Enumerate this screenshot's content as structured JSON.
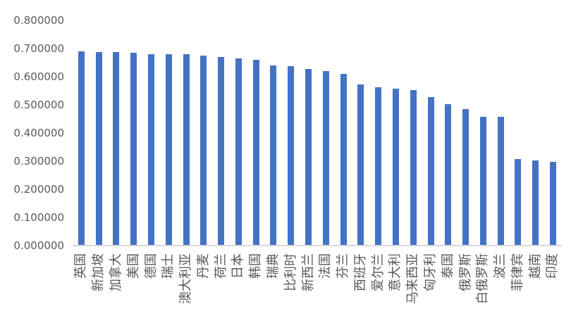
{
  "chart_data": {
    "type": "bar",
    "title": "",
    "xlabel": "",
    "ylabel": "",
    "categories": [
      "英国",
      "新加坡",
      "加拿大",
      "美国",
      "德国",
      "瑞士",
      "澳大利亚",
      "丹麦",
      "荷兰",
      "日本",
      "韩国",
      "瑞典",
      "比利时",
      "新西兰",
      "法国",
      "芬兰",
      "西班牙",
      "爱尔兰",
      "意大利",
      "马来西亚",
      "匈牙利",
      "泰国",
      "俄罗斯",
      "白俄罗斯",
      "波兰",
      "菲律宾",
      "越南",
      "印度"
    ],
    "values": [
      0.691,
      0.688,
      0.688,
      0.684,
      0.681,
      0.68,
      0.679,
      0.675,
      0.671,
      0.666,
      0.661,
      0.64,
      0.637,
      0.628,
      0.621,
      0.611,
      0.572,
      0.563,
      0.558,
      0.553,
      0.527,
      0.502,
      0.485,
      0.458,
      0.457,
      0.307,
      0.303,
      0.297
    ],
    "ylim": [
      0,
      0.8
    ],
    "y_tick_labels": [
      "0.800000",
      "0.700000",
      "0.600000",
      "0.500000",
      "0.400000",
      "0.300000",
      "0.200000",
      "0.100000",
      "0.000000"
    ],
    "x_label_rotation_deg": -90,
    "grid": false,
    "legend": "none",
    "colors": {
      "bar": "#4472C4",
      "axis_line": "#D9D9D9",
      "labels": "#595959",
      "background": "#FFFFFF"
    }
  }
}
